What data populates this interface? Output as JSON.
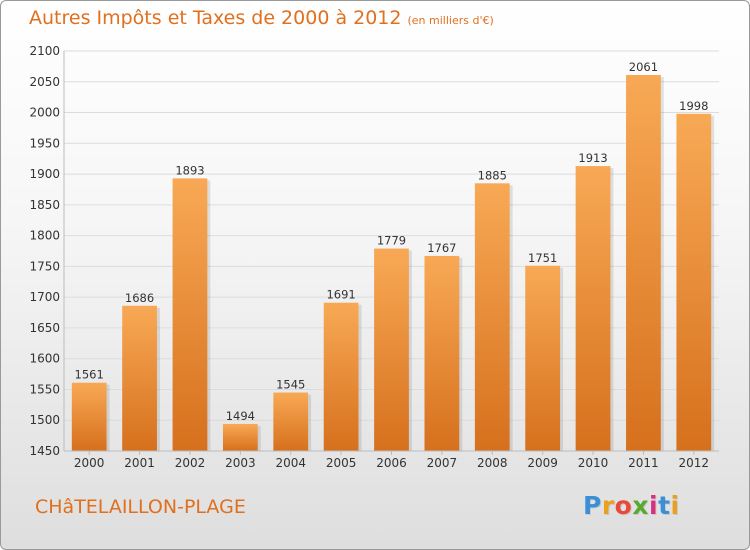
{
  "title": "Autres Impôts et Taxes de 2000 à 2012",
  "subtitle": "(en milliers d'€)",
  "place": "CHâTELAILLON-PLAGE",
  "brand": {
    "name": "Proxiti",
    "letters": [
      "P",
      "r",
      "o",
      "x",
      "i",
      "t",
      "i"
    ],
    "colors": [
      "#3a8fd8",
      "#e8a020",
      "#e84a3a",
      "#5aa830",
      "#d83080",
      "#3a8fd8",
      "#e8a020"
    ]
  },
  "colors": {
    "accent": "#e0701e",
    "bar_light": "#f7a654",
    "bar_dark": "#d9731f"
  },
  "chart_data": {
    "type": "bar",
    "categories": [
      "2000",
      "2001",
      "2002",
      "2003",
      "2004",
      "2005",
      "2006",
      "2007",
      "2008",
      "2009",
      "2010",
      "2011",
      "2012"
    ],
    "values": [
      1561,
      1686,
      1893,
      1494,
      1545,
      1691,
      1779,
      1767,
      1885,
      1751,
      1913,
      2061,
      1998
    ],
    "title": "Autres Impôts et Taxes de 2000 à 2012",
    "subtitle": "(en milliers d'€)",
    "ylim": [
      1450,
      2100
    ],
    "yticks": [
      1450,
      1500,
      1550,
      1600,
      1650,
      1700,
      1750,
      1800,
      1850,
      1900,
      1950,
      2000,
      2050,
      2100
    ],
    "grid": true,
    "data_labels": true
  }
}
